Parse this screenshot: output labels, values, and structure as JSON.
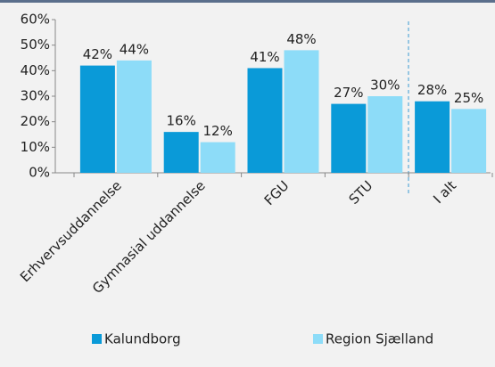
{
  "chart_data": {
    "type": "bar",
    "categories": [
      "Erhvervsuddannelse",
      "Gymnasial uddannelse",
      "FGU",
      "STU",
      "I alt"
    ],
    "series": [
      {
        "name": "Kalundborg",
        "color": "#0a9ad8",
        "values": [
          42,
          16,
          41,
          27,
          28
        ],
        "value_labels": [
          "42%",
          "16%",
          "41%",
          "27%",
          "28%"
        ]
      },
      {
        "name": "Region Sjælland",
        "color": "#8ddcf8",
        "values": [
          44,
          12,
          48,
          30,
          25
        ],
        "value_labels": [
          "44%",
          "12%",
          "48%",
          "30%",
          "25%"
        ]
      }
    ],
    "ylim": [
      0,
      60
    ],
    "yticks": [
      {
        "value": 0,
        "label": "0%"
      },
      {
        "value": 10,
        "label": "10%"
      },
      {
        "value": 20,
        "label": "20%"
      },
      {
        "value": 30,
        "label": "30%"
      },
      {
        "value": 40,
        "label": "40%"
      },
      {
        "value": 50,
        "label": "50%"
      },
      {
        "value": 60,
        "label": "60%"
      }
    ],
    "legend": "bottom"
  }
}
